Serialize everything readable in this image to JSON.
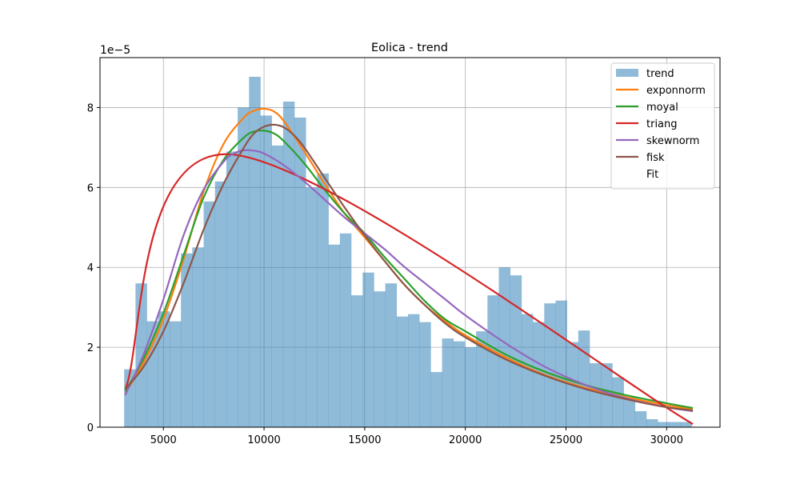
{
  "chart_data": {
    "type": "histogram",
    "title": "Eolica - trend",
    "xlabel": "",
    "ylabel": "",
    "y_offset_label": "1e−5",
    "xlim": [
      1850,
      32650
    ],
    "ylim": [
      0,
      9.25e-05
    ],
    "xticks": [
      5000,
      10000,
      15000,
      20000,
      25000,
      30000
    ],
    "xtick_labels": [
      "5000",
      "10000",
      "15000",
      "20000",
      "25000",
      "30000"
    ],
    "yticks": [
      0,
      2e-05,
      4e-05,
      6e-05,
      8e-05
    ],
    "ytick_labels": [
      "0",
      "2",
      "4",
      "6",
      "8"
    ],
    "grid": true,
    "legend_position": "top-right",
    "histogram": {
      "name": "trend",
      "color": "#1f77b4",
      "opacity": 0.5,
      "bin_start": 3050,
      "bin_width": 564,
      "values": [
        1.45e-05,
        3.6e-05,
        2.65e-05,
        2.9e-05,
        2.65e-05,
        4.35e-05,
        4.5e-05,
        5.65e-05,
        6.15e-05,
        6.9e-05,
        8e-05,
        8.77e-05,
        7.8e-05,
        7.05e-05,
        8.15e-05,
        7.75e-05,
        6e-05,
        6.35e-05,
        4.57e-05,
        4.85e-05,
        3.3e-05,
        3.87e-05,
        3.4e-05,
        3.6e-05,
        2.77e-05,
        2.83e-05,
        2.63e-05,
        1.38e-05,
        2.22e-05,
        2.15e-05,
        2e-05,
        2.4e-05,
        3.3e-05,
        4e-05,
        3.8e-05,
        2.83e-05,
        2.63e-05,
        3.1e-05,
        3.17e-05,
        2.13e-05,
        2.42e-05,
        1.6e-05,
        1.6e-05,
        1.25e-05,
        7.5e-06,
        4e-06,
        2e-06,
        1.3e-06,
        1.3e-06,
        1.3e-06
      ]
    },
    "series": [
      {
        "name": "exponnorm",
        "color": "#ff7f0e",
        "x": [
          3100,
          4000,
          5000,
          6000,
          7000,
          8000,
          9000,
          9500,
          10000,
          10500,
          11000,
          12000,
          13000,
          14000,
          15000,
          16000,
          17000,
          18000,
          19000,
          20000,
          22000,
          24000,
          26000,
          28000,
          30000,
          31300
        ],
        "y": [
          8.5e-06,
          1.6e-05,
          2.7e-05,
          4.2e-05,
          5.9e-05,
          7.1e-05,
          7.75e-05,
          7.92e-05,
          7.97e-05,
          7.9e-05,
          7.65e-05,
          6.9e-05,
          6.1e-05,
          5.35e-05,
          4.75e-05,
          4.15e-05,
          3.55e-05,
          3.05e-05,
          2.65e-05,
          2.3e-05,
          1.75e-05,
          1.3e-05,
          9.8e-06,
          7.5e-06,
          5.5e-06,
          4.5e-06
        ]
      },
      {
        "name": "moyal",
        "color": "#2ca02c",
        "x": [
          3100,
          4000,
          5000,
          6000,
          7000,
          8000,
          9000,
          9500,
          10000,
          10500,
          11000,
          12000,
          13000,
          14000,
          15000,
          16000,
          17000,
          18000,
          19000,
          20000,
          22000,
          24000,
          26000,
          28000,
          30000,
          31300
        ],
        "y": [
          9e-06,
          1.7e-05,
          2.85e-05,
          4.3e-05,
          5.75e-05,
          6.7e-05,
          7.25e-05,
          7.4e-05,
          7.42e-05,
          7.35e-05,
          7.15e-05,
          6.6e-05,
          5.95e-05,
          5.35e-05,
          4.85e-05,
          4.25e-05,
          3.7e-05,
          3.15e-05,
          2.7e-05,
          2.4e-05,
          1.82e-05,
          1.38e-05,
          1.05e-05,
          8e-06,
          6e-06,
          4.8e-06
        ]
      },
      {
        "name": "triang",
        "color": "#d62728",
        "x": [
          3100,
          8300,
          31300
        ],
        "y": [
          9.5e-06,
          6.83e-05,
          8e-07
        ]
      },
      {
        "name": "skewnorm",
        "color": "#9467bd",
        "x": [
          3100,
          4000,
          5000,
          6000,
          7000,
          8000,
          8500,
          9000,
          9500,
          10000,
          11000,
          12000,
          13000,
          14000,
          15000,
          16000,
          17000,
          18000,
          19000,
          20000,
          22000,
          24000,
          26000,
          28000,
          30000,
          31300
        ],
        "y": [
          8e-06,
          1.8e-05,
          3.2e-05,
          4.8e-05,
          5.95e-05,
          6.65e-05,
          6.85e-05,
          6.93e-05,
          6.92e-05,
          6.85e-05,
          6.55e-05,
          6.15e-05,
          5.7e-05,
          5.25e-05,
          4.85e-05,
          4.45e-05,
          4e-05,
          3.6e-05,
          3.2e-05,
          2.8e-05,
          2.1e-05,
          1.5e-05,
          1.05e-05,
          7.2e-06,
          5e-06,
          4e-06
        ]
      },
      {
        "name": "fisk",
        "color": "#8c564b",
        "x": [
          3100,
          4000,
          5000,
          6000,
          7000,
          8000,
          9000,
          9500,
          10000,
          10500,
          11000,
          11500,
          12000,
          13000,
          14000,
          15000,
          16000,
          17000,
          18000,
          19000,
          20000,
          22000,
          24000,
          26000,
          28000,
          30000,
          31300
        ],
        "y": [
          9.5e-06,
          1.5e-05,
          2.4e-05,
          3.6e-05,
          4.95e-05,
          6.1e-05,
          7e-05,
          7.35e-05,
          7.52e-05,
          7.57e-05,
          7.5e-05,
          7.3e-05,
          7e-05,
          6.25e-05,
          5.5e-05,
          4.8e-05,
          4.15e-05,
          3.55e-05,
          3.05e-05,
          2.6e-05,
          2.25e-05,
          1.7e-05,
          1.28e-05,
          9.5e-06,
          7e-06,
          5e-06,
          4.2e-06
        ]
      }
    ],
    "legend": [
      {
        "label": "trend",
        "kind": "patch",
        "color": "#1f77b4"
      },
      {
        "label": "exponnorm",
        "kind": "line",
        "color": "#ff7f0e"
      },
      {
        "label": "moyal",
        "kind": "line",
        "color": "#2ca02c"
      },
      {
        "label": "triang",
        "kind": "line",
        "color": "#d62728"
      },
      {
        "label": "skewnorm",
        "kind": "line",
        "color": "#9467bd"
      },
      {
        "label": "fisk",
        "kind": "line",
        "color": "#8c564b"
      },
      {
        "label": "Fit",
        "kind": "none",
        "color": "#ffffff"
      }
    ]
  }
}
